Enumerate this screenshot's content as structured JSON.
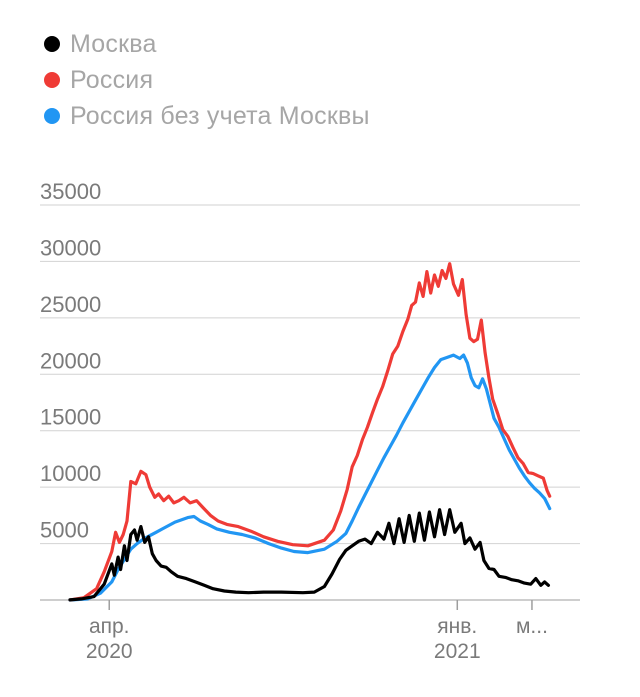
{
  "legend": [
    {
      "label": "Москва",
      "color": "#000000"
    },
    {
      "label": "Россия",
      "color": "#ef3b36"
    },
    {
      "label": "Россия без учета Москвы",
      "color": "#2196f3"
    }
  ],
  "chart_data": {
    "type": "line",
    "ylim": [
      0,
      35000
    ],
    "yticks": [
      "35000",
      "30000",
      "25000",
      "20000",
      "15000",
      "10000",
      "5000"
    ],
    "ytick_values": [
      35000,
      30000,
      25000,
      20000,
      15000,
      10000,
      5000
    ],
    "xticks": [
      {
        "label": "апр.",
        "sublabel": "2020",
        "date": "2020-04-01"
      },
      {
        "label": "янв.",
        "sublabel": "2021",
        "date": "2021-01-01"
      },
      {
        "label": "м...",
        "sublabel": "",
        "date": "2021-03-01"
      }
    ],
    "x_range": [
      "2020-03-01",
      "2021-03-20"
    ],
    "grid": true,
    "series": [
      {
        "name": "Москва",
        "color": "#000000",
        "points": [
          [
            "2020-03-01",
            10
          ],
          [
            "2020-03-10",
            100
          ],
          [
            "2020-03-20",
            300
          ],
          [
            "2020-03-28",
            1400
          ],
          [
            "2020-04-03",
            3200
          ],
          [
            "2020-04-05",
            2200
          ],
          [
            "2020-04-08",
            3800
          ],
          [
            "2020-04-10",
            2700
          ],
          [
            "2020-04-13",
            4800
          ],
          [
            "2020-04-15",
            3500
          ],
          [
            "2020-04-18",
            5800
          ],
          [
            "2020-04-21",
            6200
          ],
          [
            "2020-04-23",
            5300
          ],
          [
            "2020-04-26",
            6500
          ],
          [
            "2020-04-29",
            5100
          ],
          [
            "2020-05-02",
            5600
          ],
          [
            "2020-05-05",
            4100
          ],
          [
            "2020-05-08",
            3500
          ],
          [
            "2020-05-12",
            3000
          ],
          [
            "2020-05-16",
            2900
          ],
          [
            "2020-05-20",
            2500
          ],
          [
            "2020-05-25",
            2100
          ],
          [
            "2020-06-01",
            1900
          ],
          [
            "2020-06-08",
            1600
          ],
          [
            "2020-06-15",
            1300
          ],
          [
            "2020-06-22",
            1000
          ],
          [
            "2020-07-01",
            800
          ],
          [
            "2020-07-10",
            700
          ],
          [
            "2020-07-20",
            650
          ],
          [
            "2020-08-01",
            700
          ],
          [
            "2020-08-15",
            700
          ],
          [
            "2020-09-01",
            650
          ],
          [
            "2020-09-10",
            700
          ],
          [
            "2020-09-18",
            1200
          ],
          [
            "2020-09-24",
            2300
          ],
          [
            "2020-09-30",
            3600
          ],
          [
            "2020-10-05",
            4400
          ],
          [
            "2020-10-10",
            4800
          ],
          [
            "2020-10-15",
            5200
          ],
          [
            "2020-10-20",
            5400
          ],
          [
            "2020-10-25",
            5000
          ],
          [
            "2020-10-30",
            6000
          ],
          [
            "2020-11-04",
            5400
          ],
          [
            "2020-11-08",
            6800
          ],
          [
            "2020-11-12",
            5000
          ],
          [
            "2020-11-16",
            7200
          ],
          [
            "2020-11-20",
            5100
          ],
          [
            "2020-11-24",
            7500
          ],
          [
            "2020-11-28",
            5200
          ],
          [
            "2020-12-02",
            7700
          ],
          [
            "2020-12-06",
            5300
          ],
          [
            "2020-12-10",
            7800
          ],
          [
            "2020-12-14",
            5600
          ],
          [
            "2020-12-18",
            8000
          ],
          [
            "2020-12-22",
            5800
          ],
          [
            "2020-12-26",
            8000
          ],
          [
            "2020-12-30",
            6000
          ],
          [
            "2021-01-04",
            6800
          ],
          [
            "2021-01-07",
            5000
          ],
          [
            "2021-01-11",
            5500
          ],
          [
            "2021-01-15",
            4500
          ],
          [
            "2021-01-19",
            5100
          ],
          [
            "2021-01-22",
            3500
          ],
          [
            "2021-01-26",
            2800
          ],
          [
            "2021-01-30",
            2700
          ],
          [
            "2021-02-03",
            2100
          ],
          [
            "2021-02-08",
            2000
          ],
          [
            "2021-02-13",
            1800
          ],
          [
            "2021-02-18",
            1700
          ],
          [
            "2021-02-23",
            1500
          ],
          [
            "2021-02-28",
            1400
          ],
          [
            "2021-03-04",
            1900
          ],
          [
            "2021-03-08",
            1300
          ],
          [
            "2021-03-11",
            1600
          ],
          [
            "2021-03-14",
            1300
          ]
        ]
      },
      {
        "name": "Россия",
        "color": "#ef3b36",
        "points": [
          [
            "2020-03-01",
            10
          ],
          [
            "2020-03-12",
            200
          ],
          [
            "2020-03-22",
            1000
          ],
          [
            "2020-03-28",
            2500
          ],
          [
            "2020-04-03",
            4300
          ],
          [
            "2020-04-06",
            6000
          ],
          [
            "2020-04-09",
            5100
          ],
          [
            "2020-04-12",
            5800
          ],
          [
            "2020-04-15",
            7000
          ],
          [
            "2020-04-18",
            10500
          ],
          [
            "2020-04-22",
            10300
          ],
          [
            "2020-04-26",
            11400
          ],
          [
            "2020-04-30",
            11100
          ],
          [
            "2020-05-03",
            10000
          ],
          [
            "2020-05-07",
            9100
          ],
          [
            "2020-05-10",
            9400
          ],
          [
            "2020-05-14",
            8800
          ],
          [
            "2020-05-18",
            9200
          ],
          [
            "2020-05-22",
            8600
          ],
          [
            "2020-05-26",
            8800
          ],
          [
            "2020-05-30",
            9100
          ],
          [
            "2020-06-04",
            8600
          ],
          [
            "2020-06-09",
            8800
          ],
          [
            "2020-06-14",
            8200
          ],
          [
            "2020-06-20",
            7500
          ],
          [
            "2020-06-26",
            7000
          ],
          [
            "2020-07-03",
            6700
          ],
          [
            "2020-07-12",
            6500
          ],
          [
            "2020-07-22",
            6100
          ],
          [
            "2020-08-01",
            5600
          ],
          [
            "2020-08-12",
            5200
          ],
          [
            "2020-08-24",
            4900
          ],
          [
            "2020-09-05",
            4800
          ],
          [
            "2020-09-18",
            5300
          ],
          [
            "2020-09-25",
            6200
          ],
          [
            "2020-10-01",
            7900
          ],
          [
            "2020-10-06",
            9800
          ],
          [
            "2020-10-10",
            11800
          ],
          [
            "2020-10-14",
            12800
          ],
          [
            "2020-10-18",
            14200
          ],
          [
            "2020-10-22",
            15300
          ],
          [
            "2020-10-26",
            16600
          ],
          [
            "2020-10-30",
            17800
          ],
          [
            "2020-11-03",
            18900
          ],
          [
            "2020-11-07",
            20300
          ],
          [
            "2020-11-11",
            21800
          ],
          [
            "2020-11-15",
            22500
          ],
          [
            "2020-11-19",
            23800
          ],
          [
            "2020-11-23",
            24900
          ],
          [
            "2020-11-26",
            26100
          ],
          [
            "2020-11-29",
            26400
          ],
          [
            "2020-12-02",
            28100
          ],
          [
            "2020-12-05",
            26900
          ],
          [
            "2020-12-08",
            29100
          ],
          [
            "2020-12-11",
            27200
          ],
          [
            "2020-12-14",
            28800
          ],
          [
            "2020-12-17",
            27800
          ],
          [
            "2020-12-20",
            29200
          ],
          [
            "2020-12-23",
            28500
          ],
          [
            "2020-12-26",
            29800
          ],
          [
            "2020-12-29",
            28000
          ],
          [
            "2021-01-02",
            27000
          ],
          [
            "2021-01-05",
            28400
          ],
          [
            "2021-01-08",
            25300
          ],
          [
            "2021-01-11",
            23200
          ],
          [
            "2021-01-14",
            22900
          ],
          [
            "2021-01-17",
            23100
          ],
          [
            "2021-01-20",
            24800
          ],
          [
            "2021-01-23",
            21900
          ],
          [
            "2021-01-26",
            19700
          ],
          [
            "2021-01-29",
            17800
          ],
          [
            "2021-02-02",
            16500
          ],
          [
            "2021-02-06",
            15100
          ],
          [
            "2021-02-10",
            14500
          ],
          [
            "2021-02-14",
            13500
          ],
          [
            "2021-02-18",
            12600
          ],
          [
            "2021-02-22",
            12100
          ],
          [
            "2021-02-26",
            11300
          ],
          [
            "2021-03-02",
            11200
          ],
          [
            "2021-03-06",
            11000
          ],
          [
            "2021-03-10",
            10800
          ],
          [
            "2021-03-13",
            9700
          ],
          [
            "2021-03-15",
            9200
          ]
        ]
      },
      {
        "name": "Россия без учета Москвы",
        "color": "#2196f3",
        "points": [
          [
            "2020-03-01",
            0
          ],
          [
            "2020-03-15",
            100
          ],
          [
            "2020-03-25",
            600
          ],
          [
            "2020-04-03",
            1600
          ],
          [
            "2020-04-08",
            2700
          ],
          [
            "2020-04-13",
            3600
          ],
          [
            "2020-04-18",
            4500
          ],
          [
            "2020-04-23",
            5000
          ],
          [
            "2020-04-28",
            5400
          ],
          [
            "2020-05-03",
            5700
          ],
          [
            "2020-05-08",
            6000
          ],
          [
            "2020-05-13",
            6300
          ],
          [
            "2020-05-18",
            6600
          ],
          [
            "2020-05-23",
            6900
          ],
          [
            "2020-05-28",
            7100
          ],
          [
            "2020-06-02",
            7300
          ],
          [
            "2020-06-07",
            7400
          ],
          [
            "2020-06-12",
            7000
          ],
          [
            "2020-06-18",
            6700
          ],
          [
            "2020-06-25",
            6300
          ],
          [
            "2020-07-05",
            6000
          ],
          [
            "2020-07-15",
            5800
          ],
          [
            "2020-07-25",
            5500
          ],
          [
            "2020-08-05",
            5000
          ],
          [
            "2020-08-15",
            4600
          ],
          [
            "2020-08-25",
            4300
          ],
          [
            "2020-09-05",
            4200
          ],
          [
            "2020-09-18",
            4500
          ],
          [
            "2020-09-28",
            5200
          ],
          [
            "2020-10-05",
            5900
          ],
          [
            "2020-10-10",
            7000
          ],
          [
            "2020-10-15",
            8200
          ],
          [
            "2020-10-20",
            9300
          ],
          [
            "2020-10-25",
            10400
          ],
          [
            "2020-10-30",
            11500
          ],
          [
            "2020-11-04",
            12600
          ],
          [
            "2020-11-09",
            13600
          ],
          [
            "2020-11-14",
            14600
          ],
          [
            "2020-11-19",
            15700
          ],
          [
            "2020-11-24",
            16700
          ],
          [
            "2020-11-29",
            17700
          ],
          [
            "2020-12-04",
            18700
          ],
          [
            "2020-12-09",
            19700
          ],
          [
            "2020-12-14",
            20600
          ],
          [
            "2020-12-19",
            21300
          ],
          [
            "2020-12-24",
            21500
          ],
          [
            "2020-12-29",
            21700
          ],
          [
            "2021-01-03",
            21400
          ],
          [
            "2021-01-06",
            21700
          ],
          [
            "2021-01-09",
            21000
          ],
          [
            "2021-01-12",
            19700
          ],
          [
            "2021-01-15",
            19000
          ],
          [
            "2021-01-18",
            18800
          ],
          [
            "2021-01-21",
            19600
          ],
          [
            "2021-01-24",
            18700
          ],
          [
            "2021-01-27",
            17400
          ],
          [
            "2021-01-30",
            16100
          ],
          [
            "2021-02-03",
            15300
          ],
          [
            "2021-02-07",
            14300
          ],
          [
            "2021-02-11",
            13300
          ],
          [
            "2021-02-15",
            12500
          ],
          [
            "2021-02-19",
            11700
          ],
          [
            "2021-02-23",
            11000
          ],
          [
            "2021-02-27",
            10400
          ],
          [
            "2021-03-03",
            9900
          ],
          [
            "2021-03-07",
            9500
          ],
          [
            "2021-03-11",
            9000
          ],
          [
            "2021-03-15",
            8100
          ]
        ]
      }
    ]
  }
}
